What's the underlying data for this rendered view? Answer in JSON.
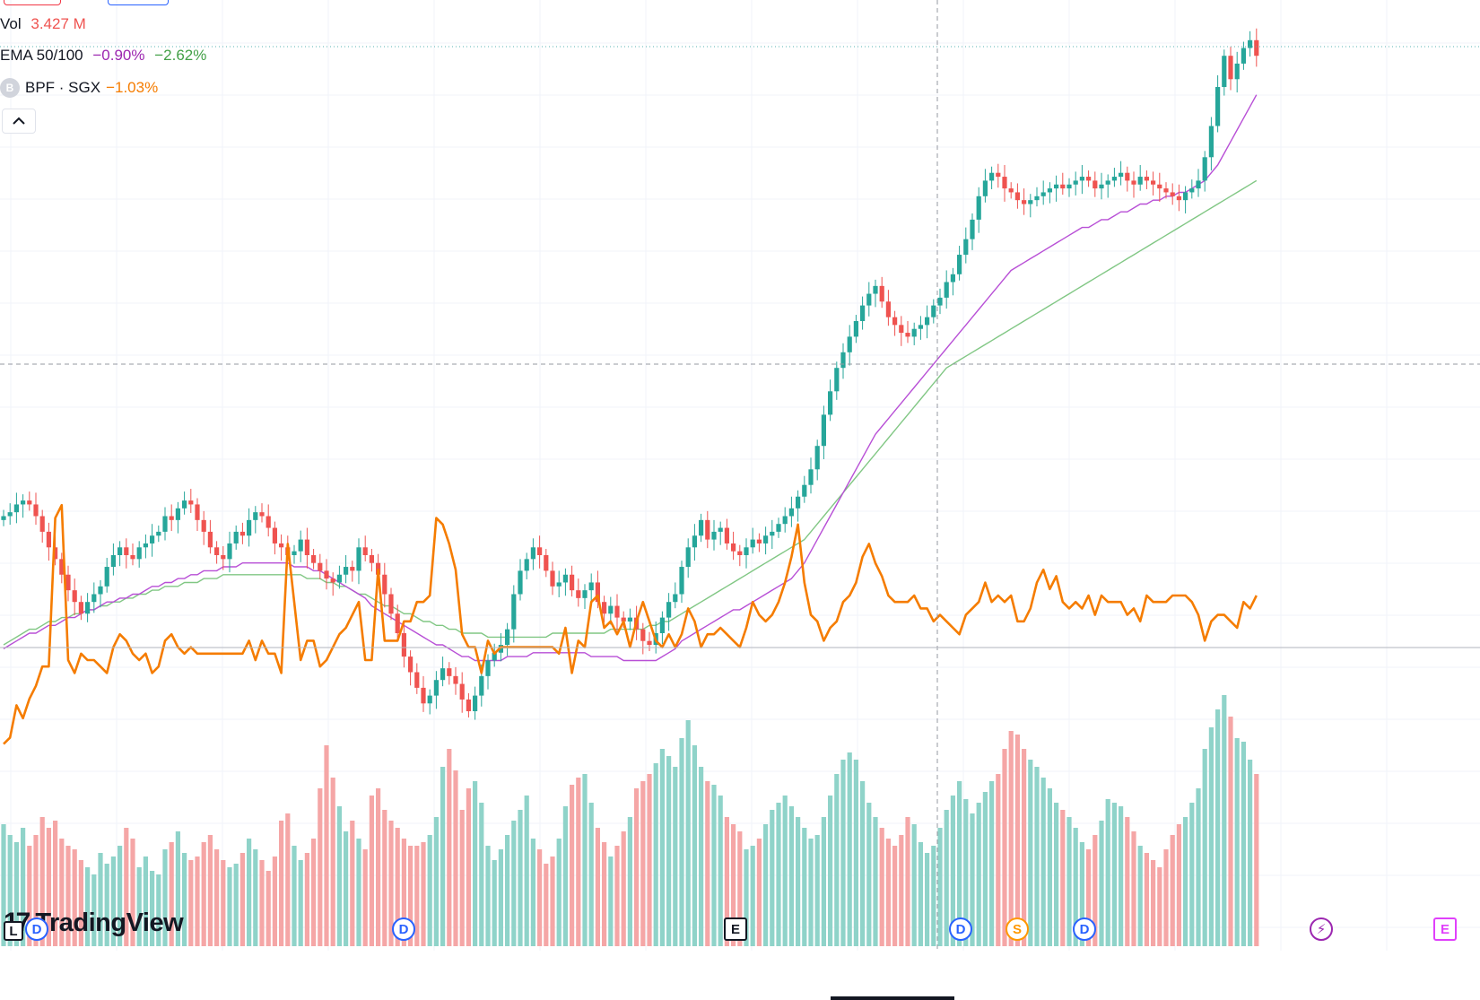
{
  "legend": {
    "vol_label": "Vol",
    "vol_value": "3.427 M",
    "ema_label": "EMA 50/100",
    "ema_fast_value": "−0.90%",
    "ema_slow_value": "−2.62%",
    "compare_logo": "B",
    "compare_label": "BPF · SGX",
    "compare_value": "−1.03%",
    "collapse_icon": "chevron-up-icon"
  },
  "branding": {
    "logo_text": "TradingView"
  },
  "events": [
    {
      "type": "dividend",
      "glyph": "D"
    },
    {
      "type": "dividend",
      "glyph": "D"
    },
    {
      "type": "earnings",
      "glyph": "E"
    },
    {
      "type": "dividend",
      "glyph": "D"
    },
    {
      "type": "split",
      "glyph": "S"
    },
    {
      "type": "dividend",
      "glyph": "D"
    },
    {
      "type": "flash",
      "glyph": "⚡"
    },
    {
      "type": "earnings-future",
      "glyph": "E"
    },
    {
      "type": "label",
      "glyph": "L"
    }
  ],
  "colors": {
    "up": "#26a69a",
    "down": "#ef5350",
    "vol_up": "#8fd3c9",
    "vol_down": "#f5a6a6",
    "ema_fast": "#b84fd6",
    "ema_slow": "#81c784",
    "compare": "#f57c00",
    "grid": "#f0f3fa",
    "crosshair": "#9598a1"
  },
  "chart_data": {
    "type": "candlestick",
    "title": "",
    "grid": true,
    "price": {
      "ohlc": [],
      "note_keys": []
    },
    "price_path": [
      70,
      71,
      73,
      74,
      73,
      70,
      66,
      62,
      59,
      55,
      51,
      48,
      45,
      48,
      50,
      52,
      57,
      60,
      62,
      60,
      59,
      62,
      63,
      65,
      66,
      70,
      69,
      72,
      74,
      73,
      69,
      66,
      62,
      60,
      59,
      63,
      66,
      65,
      69,
      71,
      70,
      67,
      63,
      62,
      60,
      61,
      64,
      60,
      58,
      56,
      54,
      53,
      55,
      57,
      56,
      62,
      60,
      58,
      55,
      50,
      45,
      40,
      34,
      30,
      26,
      22,
      24,
      28,
      31,
      29,
      27,
      23,
      20,
      24,
      29,
      33,
      35,
      37,
      41,
      50,
      56,
      59,
      62,
      60,
      56,
      52,
      53,
      55,
      51,
      49,
      51,
      53,
      48,
      45,
      47,
      44,
      43,
      44,
      41,
      38,
      37,
      40,
      44,
      48,
      50,
      57,
      62,
      65,
      69,
      64,
      66,
      67,
      63,
      61,
      60,
      62,
      64,
      63,
      65,
      66,
      68,
      70,
      72,
      75,
      78,
      82,
      88,
      96,
      102,
      108,
      112,
      116,
      120,
      124,
      127,
      129,
      125,
      121,
      119,
      117,
      116,
      118,
      119,
      121,
      124,
      126,
      130,
      132,
      137,
      141,
      146,
      152,
      156,
      158,
      157,
      154,
      153,
      151,
      150,
      151,
      152,
      153,
      154,
      155,
      154,
      155,
      156,
      157,
      156,
      154,
      155,
      156,
      157,
      158,
      156,
      155,
      157,
      156,
      155,
      154,
      153,
      152,
      151,
      153,
      154,
      156,
      162,
      170,
      180,
      188,
      182,
      186,
      190,
      192,
      188
    ],
    "volume": [
      34,
      31,
      29,
      33,
      28,
      31,
      36,
      33,
      35,
      30,
      28,
      27,
      24,
      22,
      20,
      26,
      23,
      25,
      28,
      33,
      30,
      22,
      25,
      21,
      20,
      27,
      29,
      32,
      26,
      24,
      25,
      29,
      31,
      27,
      24,
      22,
      23,
      26,
      30,
      27,
      24,
      21,
      25,
      35,
      37,
      28,
      24,
      26,
      30,
      44,
      56,
      47,
      39,
      32,
      35,
      30,
      27,
      42,
      44,
      38,
      35,
      33,
      30,
      28,
      28,
      29,
      31,
      36,
      50,
      55,
      49,
      38,
      44,
      46,
      40,
      28,
      24,
      27,
      31,
      35,
      38,
      42,
      30,
      27,
      23,
      25,
      30,
      39,
      45,
      47,
      48,
      40,
      33,
      29,
      25,
      28,
      32,
      36,
      44,
      46,
      48,
      51,
      55,
      53,
      50,
      58,
      63,
      56,
      50,
      46,
      45,
      42,
      36,
      34,
      32,
      27,
      28,
      30,
      34,
      38,
      40,
      42,
      39,
      36,
      33,
      30,
      31,
      36,
      42,
      48,
      52,
      54,
      52,
      46,
      40,
      36,
      33,
      30,
      28,
      31,
      36,
      34,
      29,
      26,
      28,
      33,
      38,
      42,
      46,
      41,
      37,
      40,
      43,
      46,
      48,
      55,
      60,
      59,
      55,
      52,
      50,
      47,
      44,
      40,
      38,
      36,
      33,
      29,
      27,
      31,
      35,
      41,
      40,
      39,
      36,
      32,
      28,
      26,
      24,
      22,
      27,
      31,
      34,
      36,
      40,
      44,
      55,
      61,
      66,
      70,
      64,
      58,
      57,
      52,
      48
    ],
    "compare_series": [
      57,
      58,
      63,
      61,
      64,
      66,
      69,
      69,
      92,
      94,
      70,
      68,
      71,
      70,
      70,
      69,
      68,
      72,
      74,
      73,
      71,
      70,
      71,
      68,
      69,
      73,
      74,
      72,
      71,
      72,
      71,
      71,
      71,
      71,
      71,
      71,
      71,
      71,
      73,
      70,
      73,
      71,
      71,
      68,
      88,
      79,
      70,
      73,
      73,
      69,
      70,
      72,
      74,
      75,
      77,
      79,
      70,
      70,
      84,
      73,
      73,
      73,
      76,
      76,
      79,
      79,
      80,
      92,
      91,
      88,
      84,
      74,
      72,
      72,
      68,
      73,
      71,
      72,
      72,
      72,
      72,
      72,
      72,
      72,
      72,
      72,
      71,
      75,
      68,
      73,
      72,
      79,
      80,
      75,
      76,
      74,
      76,
      72,
      76,
      79,
      76,
      73,
      72,
      74,
      72,
      74,
      78,
      76,
      72,
      74,
      74,
      75,
      74,
      73,
      72,
      75,
      79,
      77,
      76,
      77,
      79,
      82,
      86,
      91,
      82,
      77,
      76,
      73,
      75,
      76,
      79,
      80,
      82,
      86,
      88,
      85,
      83,
      80,
      79,
      79,
      79,
      80,
      78,
      78,
      76,
      77,
      76,
      75,
      74,
      77,
      78,
      79,
      82,
      79,
      80,
      79,
      80,
      76,
      76,
      78,
      82,
      84,
      81,
      83,
      79,
      78,
      79,
      78,
      80,
      77,
      80,
      79,
      79,
      79,
      77,
      78,
      76,
      80,
      79,
      79,
      79,
      80,
      80,
      80,
      79,
      77,
      73,
      76,
      77,
      77,
      76,
      75,
      79,
      78,
      80
    ],
    "ema_fast_path": [
      36,
      37,
      38,
      39,
      40,
      40,
      41,
      42,
      42,
      43,
      44,
      44,
      45,
      46,
      46,
      47,
      48,
      48,
      49,
      49,
      50,
      50,
      51,
      52,
      52,
      53,
      53,
      54,
      54,
      55,
      55,
      56,
      56,
      56,
      57,
      57,
      57,
      58,
      58,
      58,
      58,
      58,
      58,
      58,
      58,
      57,
      57,
      57,
      56,
      56,
      55,
      54,
      53,
      52,
      51,
      50,
      49,
      47,
      46,
      45,
      44,
      43,
      42,
      41,
      40,
      39,
      38,
      37,
      37,
      36,
      35,
      34,
      34,
      33,
      33,
      33,
      33,
      33,
      34,
      34,
      34,
      34,
      35,
      35,
      35,
      35,
      35,
      35,
      35,
      35,
      35,
      34,
      34,
      34,
      34,
      34,
      33,
      33,
      33,
      33,
      33,
      33,
      34,
      35,
      36,
      38,
      39,
      40,
      41,
      42,
      43,
      44,
      45,
      46,
      46,
      47,
      48,
      49,
      50,
      51,
      52,
      53,
      54,
      56,
      58,
      61,
      64,
      67,
      70,
      73,
      76,
      79,
      82,
      85,
      88,
      91,
      93,
      95,
      97,
      99,
      101,
      103,
      105,
      107,
      109,
      111,
      113,
      115,
      117,
      119,
      121,
      123,
      125,
      127,
      129,
      131,
      133,
      134,
      135,
      136,
      137,
      138,
      139,
      140,
      141,
      142,
      143,
      144,
      144,
      145,
      146,
      146,
      147,
      148,
      148,
      149,
      150,
      150,
      151,
      151,
      152,
      152,
      153,
      153,
      154,
      155,
      156,
      158,
      160,
      163,
      166,
      169,
      172,
      175,
      178
    ],
    "ema_slow_path": [
      37,
      38,
      39,
      40,
      41,
      41,
      42,
      43,
      43,
      44,
      44,
      45,
      45,
      46,
      46,
      47,
      47,
      48,
      48,
      49,
      49,
      50,
      50,
      51,
      51,
      52,
      52,
      52,
      53,
      53,
      53,
      54,
      54,
      54,
      55,
      55,
      55,
      55,
      55,
      55,
      55,
      55,
      55,
      55,
      55,
      55,
      55,
      54,
      54,
      54,
      53,
      53,
      52,
      52,
      51,
      50,
      50,
      49,
      48,
      47,
      47,
      46,
      45,
      45,
      44,
      43,
      43,
      42,
      42,
      41,
      41,
      40,
      40,
      40,
      40,
      39,
      39,
      39,
      39,
      39,
      39,
      39,
      39,
      39,
      39,
      40,
      40,
      40,
      40,
      40,
      40,
      40,
      40,
      40,
      41,
      41,
      41,
      41,
      41,
      41,
      42,
      42,
      43,
      43,
      44,
      45,
      46,
      47,
      48,
      49,
      50,
      51,
      52,
      53,
      54,
      55,
      56,
      57,
      58,
      59,
      60,
      61,
      62,
      63,
      64,
      66,
      68,
      70,
      72,
      74,
      76,
      78,
      80,
      82,
      84,
      86,
      88,
      90,
      92,
      94,
      96,
      98,
      100,
      102,
      104,
      106,
      108,
      109,
      110,
      111,
      112,
      113,
      114,
      115,
      116,
      117,
      118,
      119,
      120,
      121,
      122,
      123,
      124,
      125,
      126,
      127,
      128,
      129,
      130,
      131,
      132,
      133,
      134,
      135,
      136,
      137,
      138,
      139,
      140,
      141,
      142,
      143,
      144,
      145,
      146,
      147,
      148,
      149,
      150,
      151,
      152,
      153,
      154,
      155,
      156
    ]
  }
}
